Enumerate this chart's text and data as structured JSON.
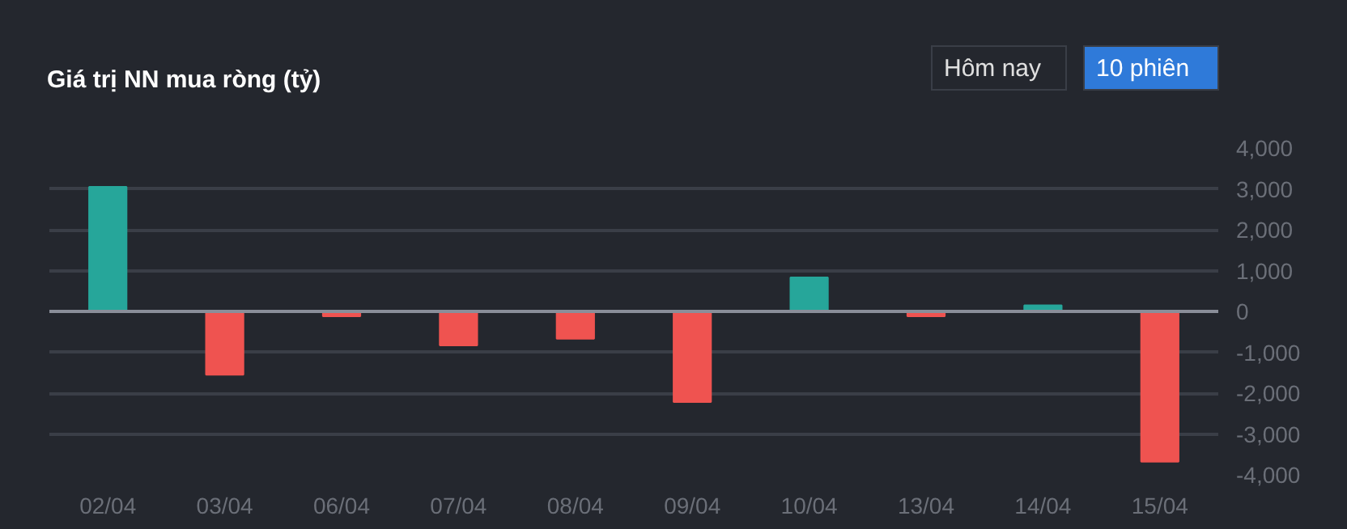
{
  "chart_data": {
    "type": "bar",
    "title": "Giá trị NN mua ròng (tỷ)",
    "categories": [
      "02/04",
      "03/04",
      "06/04",
      "07/04",
      "08/04",
      "09/04",
      "10/04",
      "13/04",
      "14/04",
      "15/04"
    ],
    "values": [
      3050,
      -1550,
      -120,
      -830,
      -670,
      -2220,
      830,
      -120,
      150,
      -3680
    ],
    "colors": [
      "#26a69a",
      "#ef5350",
      "#ef5350",
      "#ef5350",
      "#ef5350",
      "#ef5350",
      "#26a69a",
      "#ef5350",
      "#26a69a",
      "#ef5350"
    ],
    "ylim": [
      -4000,
      4000
    ],
    "yticks": [
      {
        "value": -4000,
        "label": "-4,000"
      },
      {
        "value": -3000,
        "label": "-3,000"
      },
      {
        "value": -2000,
        "label": "-2,000"
      },
      {
        "value": -1000,
        "label": "-1,000"
      },
      0,
      {
        "value": 1000,
        "label": "1,000"
      },
      {
        "value": 2000,
        "label": "2,000"
      },
      {
        "value": 3000,
        "label": "3,000"
      },
      {
        "value": 4000,
        "label": "4,000"
      }
    ],
    "grid": "y",
    "annotations": [
      "Hôm nay",
      "10 phiên"
    ]
  }
}
